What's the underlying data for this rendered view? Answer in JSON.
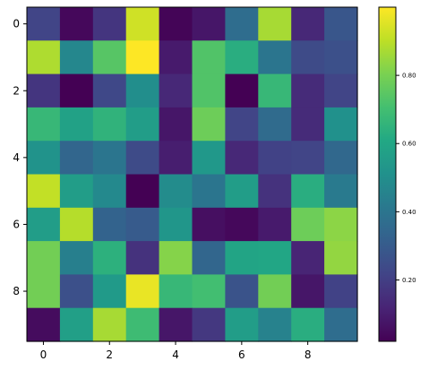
{
  "chart_data": {
    "type": "heatmap",
    "title": "",
    "xlabel": "",
    "ylabel": "",
    "x_ticks": [
      "0",
      "2",
      "4",
      "6",
      "8"
    ],
    "y_ticks": [
      "0",
      "2",
      "4",
      "6",
      "8"
    ],
    "colormap": "viridis",
    "colorbar": {
      "range": [
        0.02,
        1.0
      ],
      "ticks": [
        "0.20",
        "0.40",
        "0.60",
        "0.80"
      ]
    },
    "values": [
      [
        0.22,
        0.04,
        0.17,
        0.93,
        0.03,
        0.08,
        0.37,
        0.87,
        0.13,
        0.28
      ],
      [
        0.88,
        0.47,
        0.74,
        1.0,
        0.09,
        0.73,
        0.63,
        0.4,
        0.24,
        0.26
      ],
      [
        0.17,
        0.02,
        0.23,
        0.5,
        0.13,
        0.73,
        0.02,
        0.67,
        0.14,
        0.22
      ],
      [
        0.67,
        0.58,
        0.65,
        0.56,
        0.08,
        0.78,
        0.22,
        0.36,
        0.14,
        0.51
      ],
      [
        0.52,
        0.34,
        0.4,
        0.24,
        0.1,
        0.54,
        0.13,
        0.21,
        0.22,
        0.35
      ],
      [
        0.91,
        0.56,
        0.48,
        0.02,
        0.49,
        0.4,
        0.56,
        0.16,
        0.63,
        0.42
      ],
      [
        0.56,
        0.89,
        0.33,
        0.3,
        0.53,
        0.06,
        0.04,
        0.09,
        0.78,
        0.83
      ],
      [
        0.79,
        0.44,
        0.64,
        0.16,
        0.82,
        0.34,
        0.59,
        0.6,
        0.12,
        0.84
      ],
      [
        0.79,
        0.26,
        0.55,
        0.97,
        0.67,
        0.7,
        0.27,
        0.79,
        0.08,
        0.21
      ],
      [
        0.05,
        0.57,
        0.87,
        0.69,
        0.08,
        0.18,
        0.56,
        0.45,
        0.63,
        0.37
      ]
    ]
  }
}
